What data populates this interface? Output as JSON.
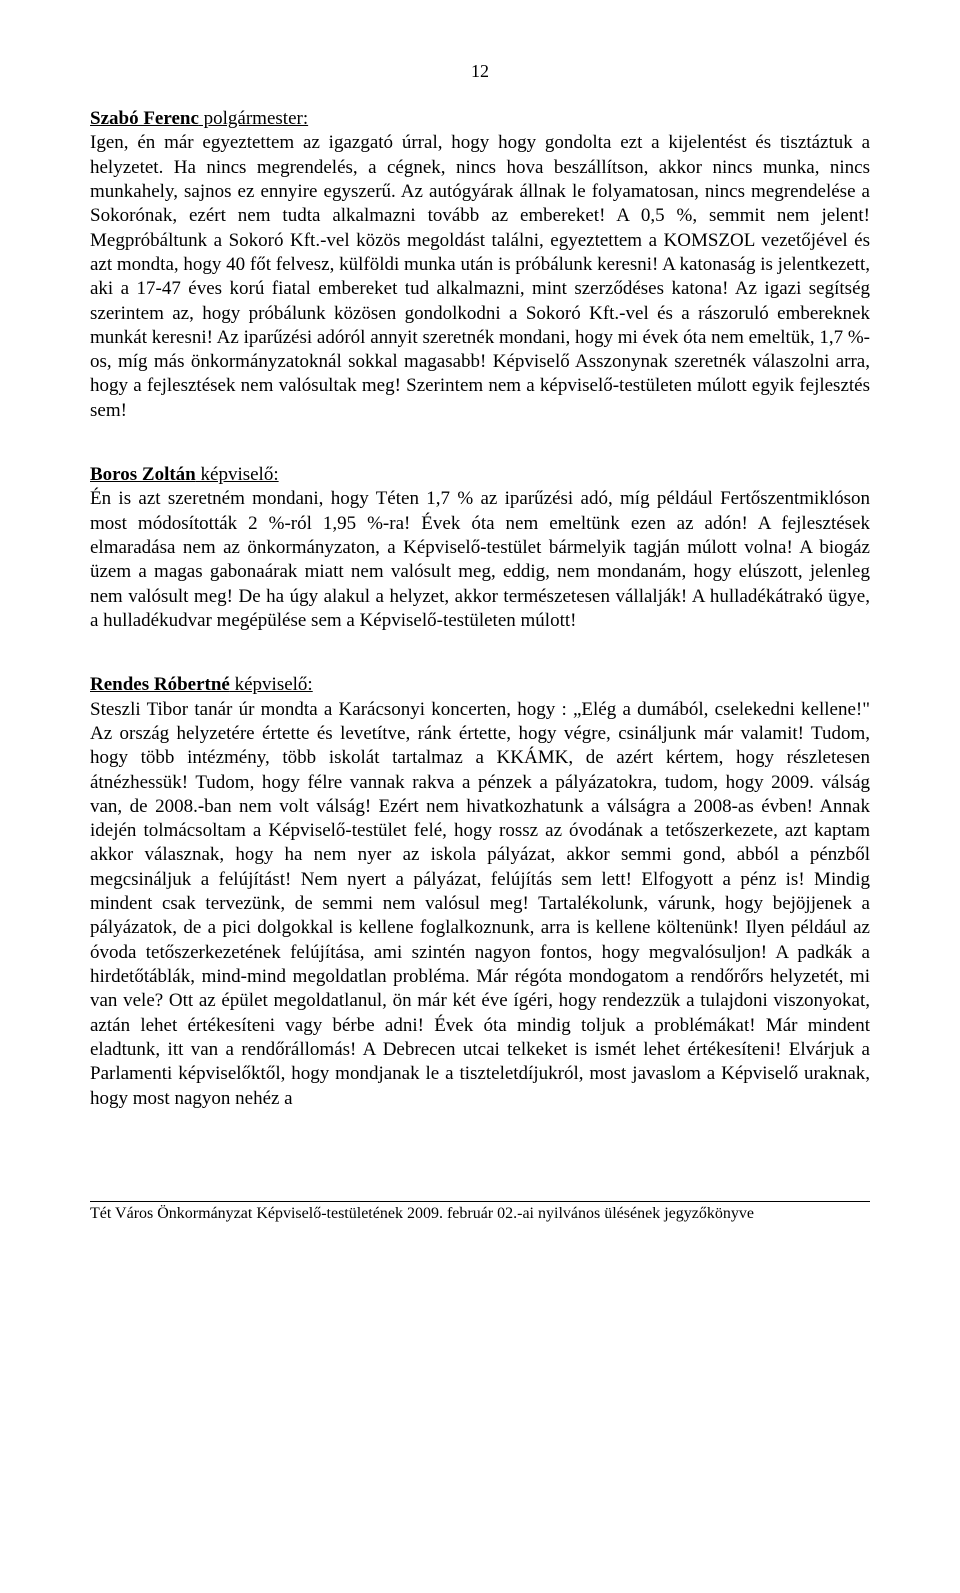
{
  "page_number": "12",
  "sections": [
    {
      "speaker_html": "<b>Szabó Ferenc</b> polgármester:",
      "body": "Igen, én már egyeztettem az igazgató úrral, hogy hogy gondolta ezt a kijelentést és tisztáztuk a helyzetet. Ha nincs megrendelés, a cégnek, nincs hova beszállítson, akkor nincs munka, nincs munkahely, sajnos ez ennyire egyszerű. Az autógyárak állnak le folyamatosan, nincs megrendelése a Sokorónak, ezért nem tudta alkalmazni tovább az embereket! A 0,5 %, semmit nem jelent! Megpróbáltunk a Sokoró Kft.-vel közös megoldást találni, egyeztettem a KOMSZOL vezetőjével és azt mondta, hogy 40 főt felvesz, külföldi munka után is próbálunk keresni! A katonaság is jelentkezett, aki a 17-47 éves korú fiatal embereket tud alkalmazni, mint szerződéses katona! Az igazi segítség szerintem az, hogy próbálunk közösen gondolkodni a Sokoró Kft.-vel és a rászoruló embereknek munkát keresni! Az iparűzési adóról annyit szeretnék mondani, hogy mi évek óta nem emeltük, 1,7 %-os, míg más önkormányzatoknál sokkal magasabb! Képviselő Asszonynak szeretnék válaszolni arra, hogy a fejlesztések nem valósultak meg! Szerintem nem a képviselő-testületen múlott egyik fejlesztés sem!"
    },
    {
      "speaker_html": "<b>Boros Zoltán</b> képviselő:",
      "body": "Én is azt szeretném mondani, hogy Téten 1,7 % az iparűzési adó, míg például Fertőszentmiklóson most módosították 2 %-ról 1,95 %-ra! Évek óta nem emeltünk ezen az adón! A fejlesztések elmaradása nem az önkormányzaton, a Képviselő-testület bármelyik tagján múlott volna! A biogáz üzem a magas gabonaárak miatt nem valósult meg, eddig, nem mondanám, hogy elúszott, jelenleg nem valósult meg! De ha úgy alakul a helyzet, akkor természetesen vállalják! A hulladékátrakó ügye, a hulladékudvar megépülése sem a Képviselő-testületen múlott!"
    },
    {
      "speaker_html": "<b>Rendes Róbertné</b> képviselő:",
      "body": "Steszli Tibor tanár úr mondta a Karácsonyi koncerten, hogy : „Elég a dumából, cselekedni kellene!\" Az ország helyzetére értette és levetítve, ránk értette, hogy végre, csináljunk már valamit! Tudom, hogy több intézmény, több iskolát tartalmaz a KKÁMK, de azért kértem, hogy részletesen átnézhessük! Tudom, hogy félre vannak rakva a pénzek a pályázatokra, tudom, hogy 2009. válság van, de 2008.-ban nem volt válság! Ezért nem hivatkozhatunk a válságra a 2008-as évben! Annak idején tolmácsoltam a Képviselő-testület felé, hogy rossz az óvodának a tetőszerkezete, azt kaptam akkor válasznak, hogy ha nem nyer az iskola pályázat, akkor semmi gond, abból a pénzből megcsináljuk a felújítást! Nem nyert a pályázat, felújítás sem lett! Elfogyott a pénz is! Mindig mindent csak tervezünk, de semmi nem valósul meg! Tartalékolunk, várunk, hogy bejöjjenek a pályázatok, de a pici dolgokkal is kellene foglalkoznunk, arra is kellene költenünk! Ilyen például az óvoda tetőszerkezetének felújítása, ami szintén nagyon fontos, hogy megvalósuljon! A padkák a hirdetőtáblák, mind-mind megoldatlan probléma. Már régóta mondogatom a rendőrőrs helyzetét, mi van vele? Ott az épület megoldatlanul, ön már két éve ígéri, hogy rendezzük a tulajdoni viszonyokat, aztán lehet értékesíteni vagy bérbe adni! Évek óta mindig toljuk a problémákat! Már mindent eladtunk, itt van a rendőrállomás! A Debrecen utcai telkeket is ismét lehet értékesíteni! Elvárjuk a Parlamenti képviselőktől, hogy mondjanak le a tiszteletdíjukról, most javaslom a Képviselő uraknak, hogy most nagyon nehéz a"
    }
  ],
  "footer": "Tét Város Önkormányzat Képviselő-testületének 2009. február 02.-ai nyilvános ülésének jegyzőkönyve"
}
